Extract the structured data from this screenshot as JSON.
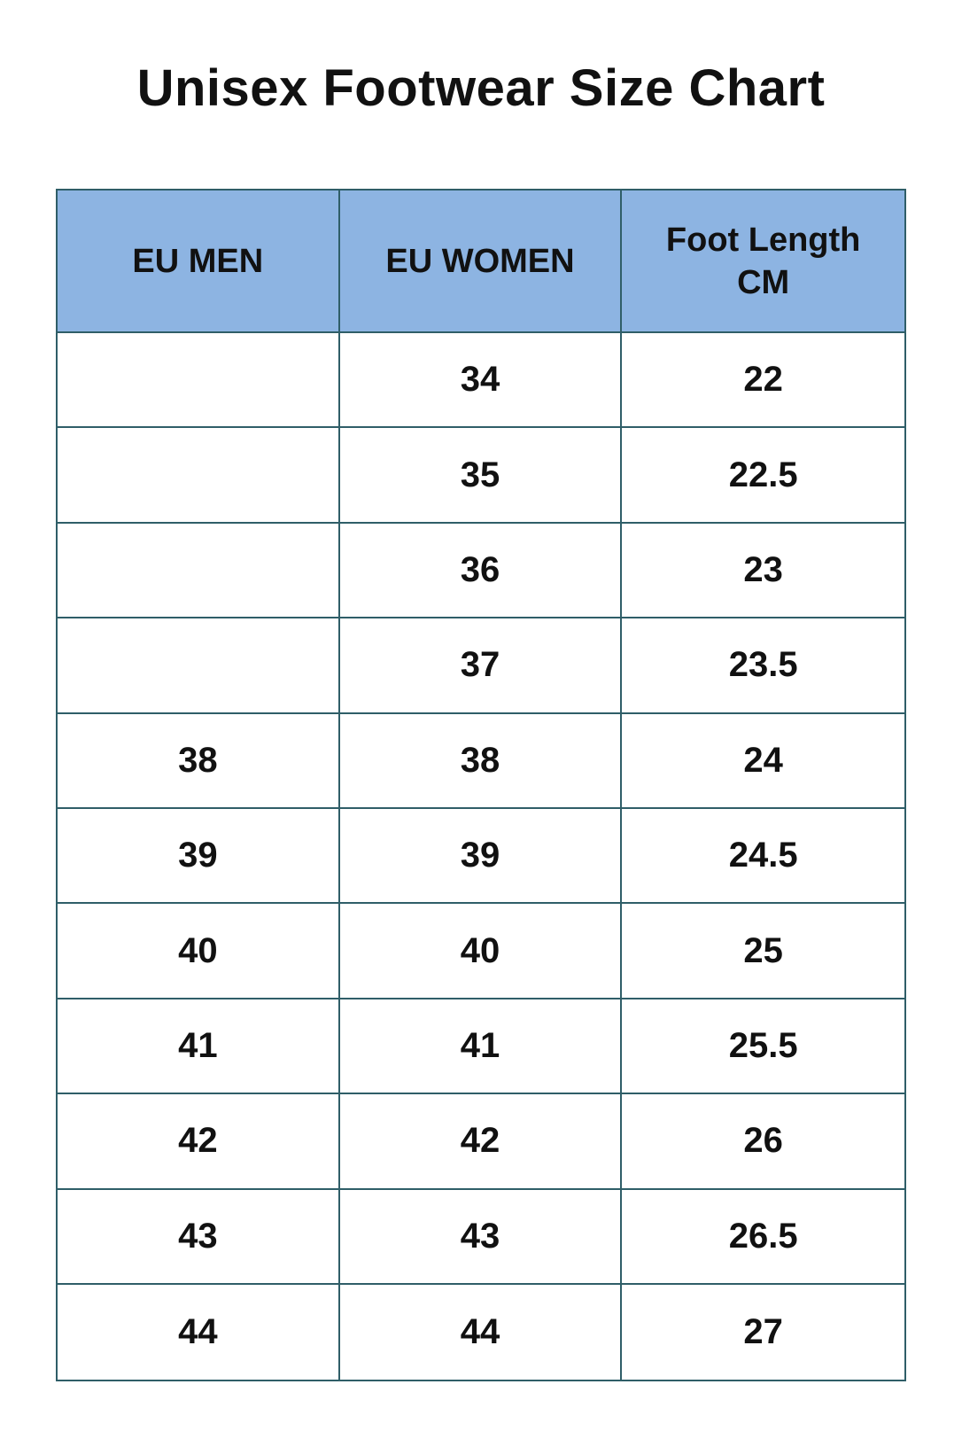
{
  "header": {
    "title": "Unisex Footwear Size Chart"
  },
  "table": {
    "columns": [
      "EU MEN",
      "EU WOMEN",
      "Foot Length CM"
    ],
    "rows": [
      [
        null,
        34,
        22
      ],
      [
        null,
        35,
        22.5
      ],
      [
        null,
        36,
        23
      ],
      [
        null,
        37,
        23.5
      ],
      [
        38,
        38,
        24
      ],
      [
        39,
        39,
        24.5
      ],
      [
        40,
        40,
        25
      ],
      [
        41,
        41,
        25.5
      ],
      [
        42,
        42,
        26
      ],
      [
        43,
        43,
        26.5
      ],
      [
        44,
        44,
        27
      ]
    ]
  }
}
